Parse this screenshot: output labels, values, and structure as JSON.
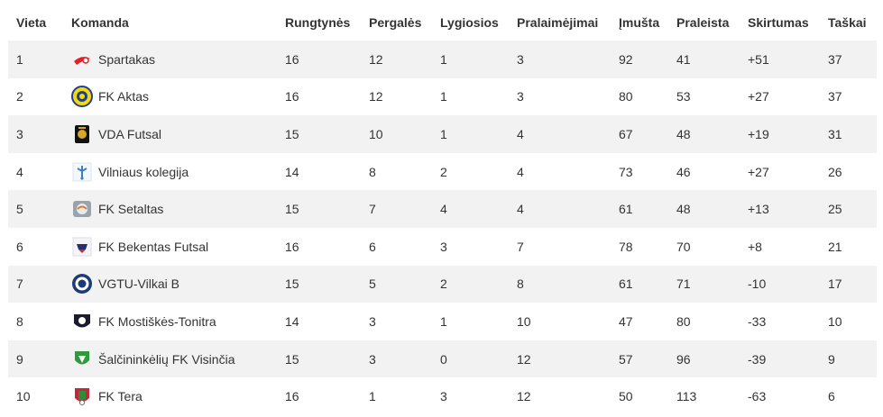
{
  "table": {
    "headers": {
      "position": "Vieta",
      "team": "Komanda",
      "played": "Rungtynės",
      "won": "Pergalės",
      "drawn": "Lygiosios",
      "lost": "Pralaimėjimai",
      "goals_for": "Įmušta",
      "goals_against": "Praleista",
      "goal_diff": "Skirtumas",
      "points": "Taškai"
    },
    "rows": [
      {
        "position": "1",
        "team": "Spartakas",
        "logo": "spartakas-logo",
        "played": "16",
        "won": "12",
        "drawn": "1",
        "lost": "3",
        "goals_for": "92",
        "goals_against": "41",
        "goal_diff": "+51",
        "points": "37"
      },
      {
        "position": "2",
        "team": "FK Aktas",
        "logo": "fk-aktas-logo",
        "played": "16",
        "won": "12",
        "drawn": "1",
        "lost": "3",
        "goals_for": "80",
        "goals_against": "53",
        "goal_diff": "+27",
        "points": "37"
      },
      {
        "position": "3",
        "team": "VDA Futsal",
        "logo": "vda-futsal-logo",
        "played": "15",
        "won": "10",
        "drawn": "1",
        "lost": "4",
        "goals_for": "67",
        "goals_against": "48",
        "goal_diff": "+19",
        "points": "31"
      },
      {
        "position": "4",
        "team": "Vilniaus kolegija",
        "logo": "vilniaus-kolegija-logo",
        "played": "14",
        "won": "8",
        "drawn": "2",
        "lost": "4",
        "goals_for": "73",
        "goals_against": "46",
        "goal_diff": "+27",
        "points": "26"
      },
      {
        "position": "5",
        "team": "FK Setaltas",
        "logo": "fk-setaltas-logo",
        "played": "15",
        "won": "7",
        "drawn": "4",
        "lost": "4",
        "goals_for": "61",
        "goals_against": "48",
        "goal_diff": "+13",
        "points": "25"
      },
      {
        "position": "6",
        "team": "FK Bekentas Futsal",
        "logo": "fk-bekentas-logo",
        "played": "16",
        "won": "6",
        "drawn": "3",
        "lost": "7",
        "goals_for": "78",
        "goals_against": "70",
        "goal_diff": "+8",
        "points": "21"
      },
      {
        "position": "7",
        "team": "VGTU-Vilkai B",
        "logo": "vgtu-vilkai-logo",
        "played": "15",
        "won": "5",
        "drawn": "2",
        "lost": "8",
        "goals_for": "61",
        "goals_against": "71",
        "goal_diff": "-10",
        "points": "17"
      },
      {
        "position": "8",
        "team": "FK Mostiškės-Tonitra",
        "logo": "fk-mostiskes-logo",
        "played": "14",
        "won": "3",
        "drawn": "1",
        "lost": "10",
        "goals_for": "47",
        "goals_against": "80",
        "goal_diff": "-33",
        "points": "10"
      },
      {
        "position": "9",
        "team": "Šalčininkėlių FK Visinčia",
        "logo": "visincia-logo",
        "played": "15",
        "won": "3",
        "drawn": "0",
        "lost": "12",
        "goals_for": "57",
        "goals_against": "96",
        "goal_diff": "-39",
        "points": "9"
      },
      {
        "position": "10",
        "team": "FK Tera",
        "logo": "fk-tera-logo",
        "played": "16",
        "won": "1",
        "drawn": "3",
        "lost": "12",
        "goals_for": "50",
        "goals_against": "113",
        "goal_diff": "-63",
        "points": "6"
      }
    ]
  },
  "colors": {
    "header_background": "#ffffff",
    "stripe_odd": "#f2f2f2",
    "stripe_even": "#ffffff",
    "text": "#333333"
  }
}
